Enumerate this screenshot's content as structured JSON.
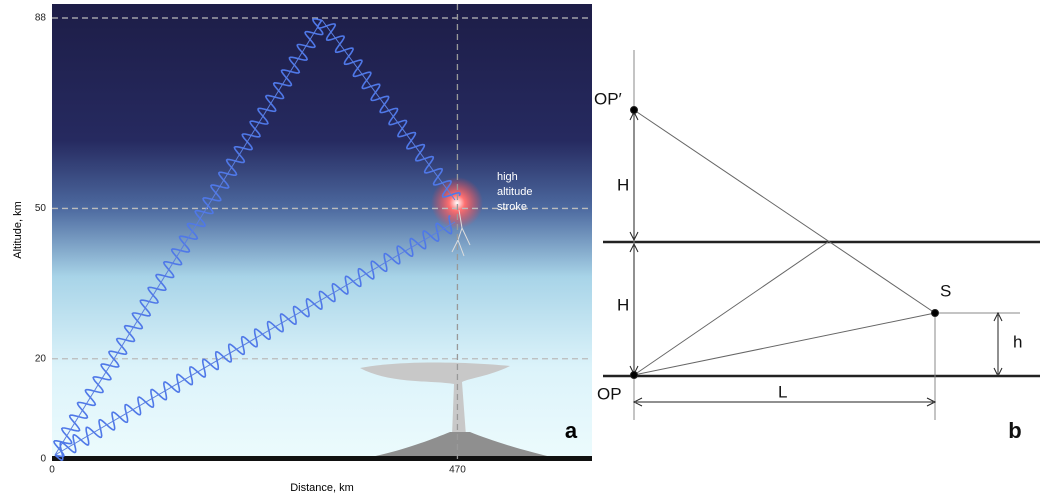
{
  "panel_a": {
    "ylabel": "Altitude, km",
    "xlabel": "Distance, km",
    "ylim": [
      0,
      88
    ],
    "yticks": [
      0,
      20,
      50,
      88
    ],
    "xlim": [
      0,
      626
    ],
    "xticks": [
      0,
      470
    ],
    "annotation": [
      "high",
      "altitude",
      "stroke"
    ],
    "panel_label": "a"
  },
  "panel_b": {
    "labels": {
      "op_prime": "OP′",
      "h_upper": "H",
      "h_lower": "H",
      "s": "S",
      "h_small": "h",
      "op": "OP",
      "l": "L"
    },
    "panel_label": "b"
  }
}
